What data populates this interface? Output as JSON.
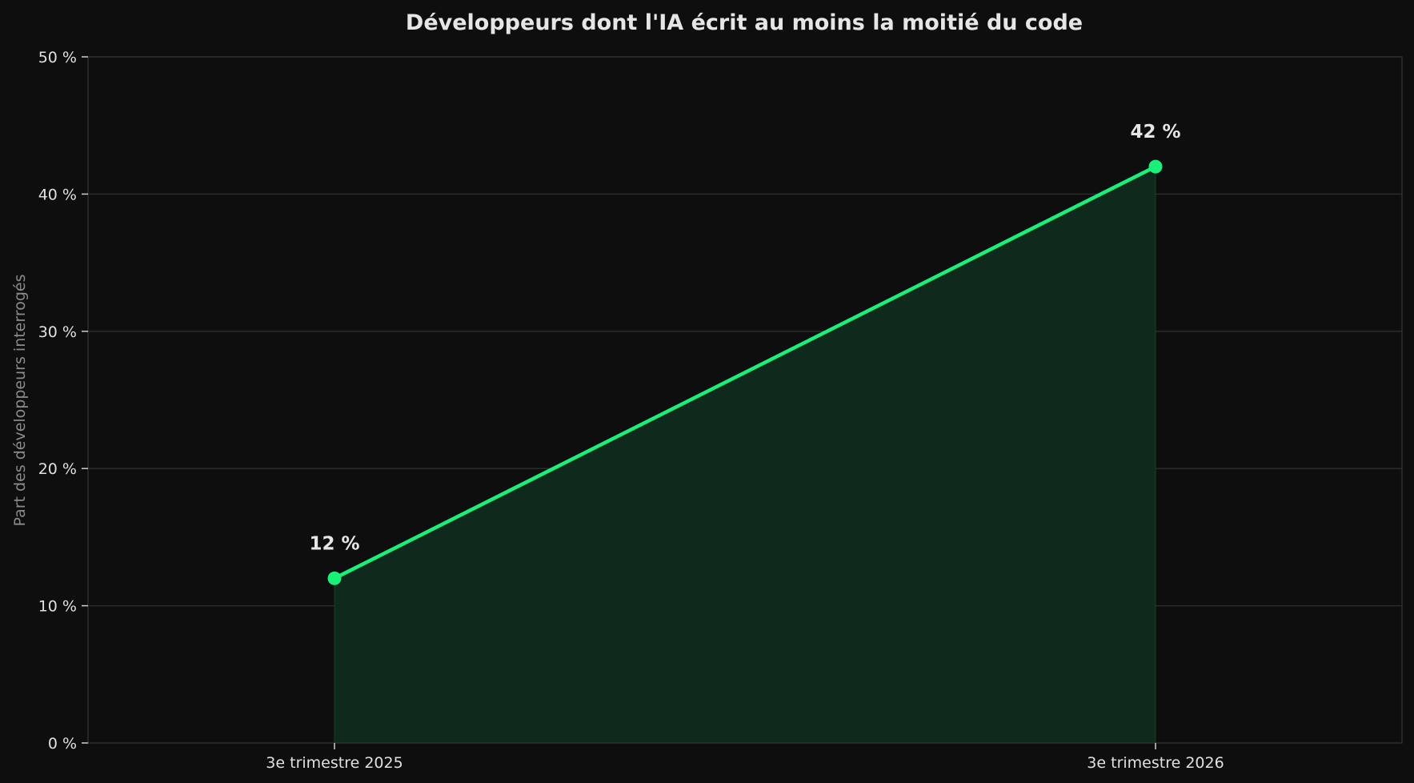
{
  "colors": {
    "background": "#0e0e0e",
    "plot_background": "#0e0e0e",
    "line": "#1aef7a",
    "fill": "#0f2a1d",
    "grid": "#2e2e2e",
    "spine": "#333333",
    "text": "#e6e6e6",
    "muted_text": "#8a8a8a"
  },
  "chart_data": {
    "type": "area",
    "title": "Développeurs dont l'IA écrit au moins la moitié du code",
    "xlabel": "",
    "ylabel": "Part des développeurs interrogés",
    "categories": [
      "3e trimestre 2025",
      "3e trimestre 2026"
    ],
    "values": [
      12,
      42
    ],
    "data_labels": [
      "12 %",
      "42 %"
    ],
    "ylim": [
      0,
      50
    ],
    "yticks": [
      0,
      10,
      20,
      30,
      40,
      50
    ],
    "ytick_labels": [
      "0 %",
      "10 %",
      "20 %",
      "30 %",
      "40 %",
      "50 %"
    ],
    "grid": "horizontal",
    "legend": "none"
  }
}
